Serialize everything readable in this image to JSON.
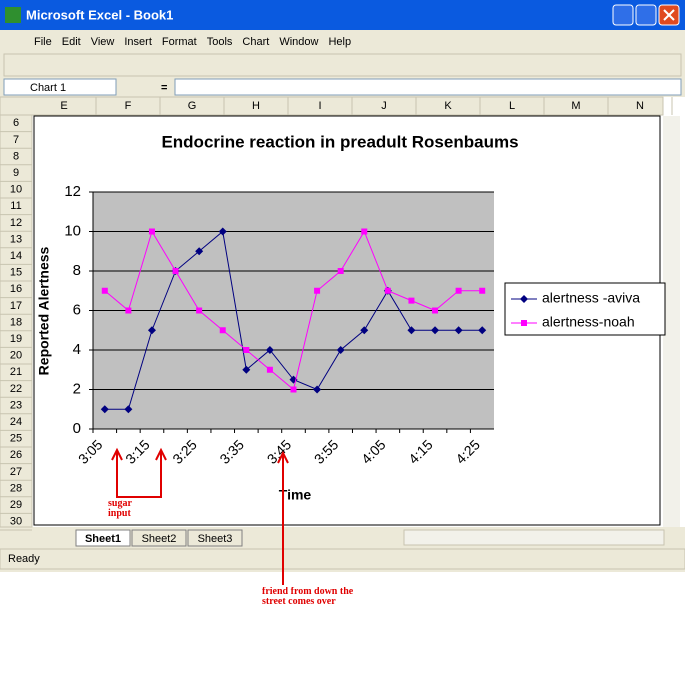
{
  "window": {
    "title": "Microsoft Excel - Book1"
  },
  "menu": [
    "File",
    "Edit",
    "View",
    "Insert",
    "Format",
    "Tools",
    "Chart",
    "Window",
    "Help"
  ],
  "name_box": "Chart 1",
  "formula_label": "=",
  "columns": [
    "E",
    "F",
    "G",
    "H",
    "I",
    "J",
    "K",
    "L",
    "M",
    "N"
  ],
  "rows": [
    "6",
    "7",
    "8",
    "9",
    "10",
    "11",
    "12",
    "13",
    "14",
    "15",
    "16",
    "17",
    "18",
    "19",
    "20",
    "21",
    "22",
    "23",
    "24",
    "25",
    "26",
    "27",
    "28",
    "29",
    "30"
  ],
  "sheets": [
    "Sheet1",
    "Sheet2",
    "Sheet3"
  ],
  "status": "Ready",
  "chart_data": {
    "type": "line",
    "title": "Endocrine reaction in preadult Rosenbaums",
    "x_label": "Time",
    "y_label": "Reported Alertness",
    "categories": [
      "3:05",
      null,
      "3:15",
      null,
      "3:25",
      null,
      "3:35",
      null,
      "3:45",
      null,
      "3:55",
      null,
      "4:05",
      null,
      "4:15",
      null,
      "4:25"
    ],
    "series": [
      {
        "name": "alertness -aviva",
        "color": "#000080",
        "marker": "diamond",
        "values": [
          1,
          1,
          5,
          8,
          9,
          10,
          3,
          4,
          2.5,
          2,
          4,
          5,
          7,
          5,
          5,
          5,
          5
        ]
      },
      {
        "name": "alertness-noah",
        "color": "#ff00ff",
        "marker": "square",
        "values": [
          7,
          6,
          10,
          8,
          6,
          5,
          4,
          3,
          2,
          7,
          8,
          10,
          7,
          6.5,
          6,
          7,
          7
        ]
      }
    ],
    "ylim": [
      0,
      12
    ],
    "yticks": [
      0,
      2,
      4,
      6,
      8,
      10,
      12
    ],
    "grid": true,
    "legend": "right",
    "annotations": [
      "sugar input",
      "friend from down the street comes over"
    ]
  }
}
